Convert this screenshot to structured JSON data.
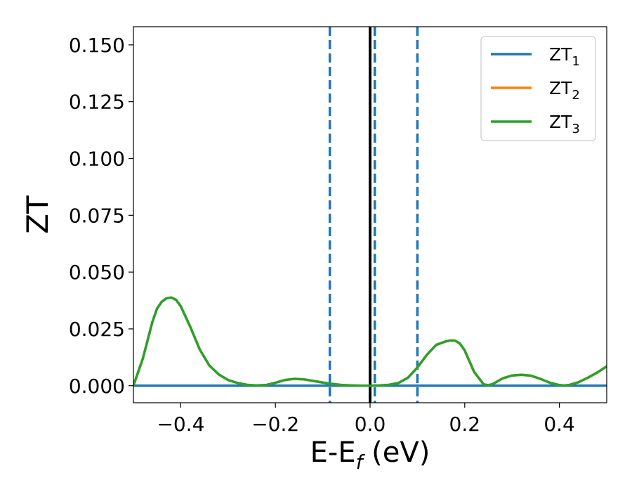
{
  "chart_data": {
    "type": "line",
    "title": "",
    "xlabel": {
      "main": "E-E",
      "sub": "f",
      "suffix": " (eV)"
    },
    "ylabel": "ZT",
    "xlim": [
      -0.5,
      0.5
    ],
    "ylim": [
      -0.0075,
      0.158
    ],
    "grid": false,
    "legend_position": "top-right",
    "xticks": [
      {
        "value": -0.4,
        "label": "−0.4"
      },
      {
        "value": -0.2,
        "label": "−0.2"
      },
      {
        "value": 0.0,
        "label": "0.0"
      },
      {
        "value": 0.2,
        "label": "0.2"
      },
      {
        "value": 0.4,
        "label": "0.4"
      }
    ],
    "yticks": [
      {
        "value": 0.0,
        "label": "0.000"
      },
      {
        "value": 0.025,
        "label": "0.025"
      },
      {
        "value": 0.05,
        "label": "0.050"
      },
      {
        "value": 0.075,
        "label": "0.075"
      },
      {
        "value": 0.1,
        "label": "0.100"
      },
      {
        "value": 0.125,
        "label": "0.125"
      },
      {
        "value": 0.15,
        "label": "0.150"
      }
    ],
    "series": [
      {
        "name": "ZT",
        "subscript": "1",
        "color": "#1f77b4",
        "x": [
          -0.5,
          -0.3,
          -0.1,
          0.1,
          0.3,
          0.5
        ],
        "y": [
          0.0,
          0.0,
          0.0,
          0.0,
          0.0,
          0.0
        ]
      },
      {
        "name": "ZT",
        "subscript": "2",
        "color": "#ff7f0e",
        "x": [
          -0.5,
          -0.48,
          -0.46,
          -0.45,
          -0.44,
          -0.43,
          -0.42,
          -0.41,
          -0.4,
          -0.38,
          -0.36,
          -0.34,
          -0.32,
          -0.3,
          -0.28,
          -0.26,
          -0.24,
          -0.22,
          -0.2,
          -0.18,
          -0.16,
          -0.14,
          -0.12,
          -0.1,
          -0.08,
          -0.06,
          -0.04,
          -0.02,
          0.0,
          0.02,
          0.04,
          0.06,
          0.08,
          0.1,
          0.12,
          0.14,
          0.16,
          0.17,
          0.18,
          0.19,
          0.2,
          0.22,
          0.24,
          0.25,
          0.26,
          0.28,
          0.3,
          0.32,
          0.34,
          0.36,
          0.38,
          0.4,
          0.41,
          0.42,
          0.44,
          0.46,
          0.48,
          0.5
        ],
        "y": [
          0.0,
          0.012,
          0.028,
          0.034,
          0.037,
          0.0385,
          0.0388,
          0.0378,
          0.035,
          0.026,
          0.016,
          0.009,
          0.005,
          0.0025,
          0.0012,
          0.0004,
          0.0001,
          0.0003,
          0.0013,
          0.0025,
          0.003,
          0.0028,
          0.0021,
          0.0014,
          0.0008,
          0.0003,
          0.0001,
          0.0,
          0.0,
          0.0001,
          0.0004,
          0.0012,
          0.0035,
          0.008,
          0.0136,
          0.018,
          0.0195,
          0.0199,
          0.0198,
          0.0185,
          0.0155,
          0.006,
          0.0006,
          0.0002,
          0.0008,
          0.0032,
          0.0045,
          0.0048,
          0.0044,
          0.003,
          0.0013,
          0.0003,
          0.0001,
          0.0003,
          0.0015,
          0.0035,
          0.0058,
          0.0085
        ]
      },
      {
        "name": "ZT",
        "subscript": "3",
        "color": "#2ca02c",
        "x": [
          -0.5,
          -0.48,
          -0.46,
          -0.45,
          -0.44,
          -0.43,
          -0.42,
          -0.41,
          -0.4,
          -0.38,
          -0.36,
          -0.34,
          -0.32,
          -0.3,
          -0.28,
          -0.26,
          -0.24,
          -0.22,
          -0.2,
          -0.18,
          -0.16,
          -0.14,
          -0.12,
          -0.1,
          -0.08,
          -0.06,
          -0.04,
          -0.02,
          0.0,
          0.02,
          0.04,
          0.06,
          0.08,
          0.1,
          0.12,
          0.14,
          0.16,
          0.17,
          0.18,
          0.19,
          0.2,
          0.22,
          0.24,
          0.25,
          0.26,
          0.28,
          0.3,
          0.32,
          0.34,
          0.36,
          0.38,
          0.4,
          0.41,
          0.42,
          0.44,
          0.46,
          0.48,
          0.5
        ],
        "y": [
          0.0,
          0.012,
          0.028,
          0.034,
          0.037,
          0.0385,
          0.0388,
          0.0378,
          0.035,
          0.026,
          0.016,
          0.009,
          0.005,
          0.0025,
          0.0012,
          0.0004,
          0.0001,
          0.0003,
          0.0013,
          0.0025,
          0.003,
          0.0028,
          0.0021,
          0.0014,
          0.0008,
          0.0003,
          0.0001,
          0.0,
          0.0,
          0.0001,
          0.0004,
          0.0012,
          0.0035,
          0.008,
          0.0136,
          0.018,
          0.0195,
          0.0199,
          0.0198,
          0.0185,
          0.0155,
          0.006,
          0.0006,
          0.0002,
          0.0008,
          0.0032,
          0.0045,
          0.0048,
          0.0044,
          0.003,
          0.0013,
          0.0003,
          0.0001,
          0.0003,
          0.0015,
          0.0035,
          0.0058,
          0.0085
        ]
      }
    ],
    "vertical_lines": [
      {
        "x": 0.0,
        "style": "solid",
        "color": "#000000"
      },
      {
        "x": -0.085,
        "style": "dashed",
        "color": "#1f77b4"
      },
      {
        "x": 0.01,
        "style": "dashed",
        "color": "#1f77b4"
      },
      {
        "x": 0.1,
        "style": "dashed",
        "color": "#1f77b4"
      }
    ]
  }
}
